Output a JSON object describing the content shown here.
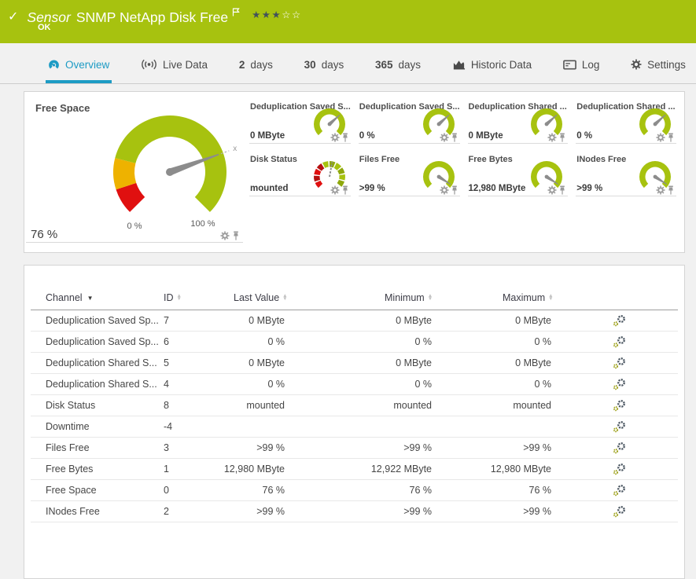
{
  "colors": {
    "green": "#a7c20f",
    "green_dark": "#8ea80c",
    "red": "#e01010",
    "red_dark": "#b51010",
    "amber": "#eeb200",
    "blue": "#1d9bc4",
    "needle": "#8c8c8c",
    "icon_gray": "#9a9a9a"
  },
  "header": {
    "check": "✓",
    "sensor_word": "Sensor",
    "title": "SNMP NetApp Disk Free",
    "status": "OK",
    "rating": 3,
    "rating_total": 5
  },
  "tabs": [
    {
      "label": "Overview",
      "icon": "gauge",
      "active": true
    },
    {
      "label": "Live Data",
      "icon": "live"
    },
    {
      "num": "2",
      "label": "days"
    },
    {
      "num": "30",
      "label": "days"
    },
    {
      "num": "365",
      "label": "days"
    },
    {
      "label": "Historic Data",
      "icon": "chart"
    },
    {
      "label": "Log",
      "icon": "log"
    },
    {
      "label": "Settings",
      "icon": "gear"
    }
  ],
  "main_gauge": {
    "title": "Free Space",
    "value": "76 %",
    "value_percent": 76,
    "min_label": "0 %",
    "max_label": "100 %",
    "needle_deg": 19.8,
    "tip_marker": "x",
    "segments": [
      {
        "to": 0.1,
        "color": "red"
      },
      {
        "to": 0.22,
        "color": "amber"
      },
      {
        "to": 1.0,
        "color": "green"
      }
    ]
  },
  "mini_gauges": [
    {
      "title": "Deduplication Saved S...",
      "value": "0 MByte",
      "type": "plain",
      "needle_deg": 42
    },
    {
      "title": "Deduplication Saved S...",
      "value": "0 %",
      "type": "plain",
      "needle_deg": 42
    },
    {
      "title": "Deduplication Shared ...",
      "value": "0 MByte",
      "type": "plain",
      "needle_deg": 42
    },
    {
      "title": "Deduplication Shared ...",
      "value": "0 %",
      "type": "plain",
      "needle_deg": 42
    },
    {
      "title": "Disk Status",
      "value": "mounted",
      "type": "segmented",
      "needle_deg": 80
    },
    {
      "title": "Files Free",
      "value": ">99 %",
      "type": "plain",
      "needle_deg": -33
    },
    {
      "title": "Free Bytes",
      "value": "12,980 MByte",
      "type": "plain",
      "needle_deg": -33
    },
    {
      "title": "INodes Free",
      "value": ">99 %",
      "type": "plain",
      "needle_deg": -33
    }
  ],
  "table": {
    "columns": [
      {
        "label": "Channel",
        "sort": "active"
      },
      {
        "label": "ID",
        "sort": "both"
      },
      {
        "label": "Last Value",
        "sort": "both"
      },
      {
        "label": "Minimum",
        "sort": "both"
      },
      {
        "label": "Maximum",
        "sort": "both"
      }
    ],
    "rows": [
      {
        "channel": "Deduplication Saved Sp...",
        "id": "7",
        "last": "0 MByte",
        "min": "0 MByte",
        "max": "0 MByte"
      },
      {
        "channel": "Deduplication Saved Sp...",
        "id": "6",
        "last": "0 %",
        "min": "0 %",
        "max": "0 %"
      },
      {
        "channel": "Deduplication Shared S...",
        "id": "5",
        "last": "0 MByte",
        "min": "0 MByte",
        "max": "0 MByte"
      },
      {
        "channel": "Deduplication Shared S...",
        "id": "4",
        "last": "0 %",
        "min": "0 %",
        "max": "0 %"
      },
      {
        "channel": "Disk Status",
        "id": "8",
        "last": "mounted",
        "min": "mounted",
        "max": "mounted"
      },
      {
        "channel": "Downtime",
        "id": "-4",
        "last": "",
        "min": "",
        "max": ""
      },
      {
        "channel": "Files Free",
        "id": "3",
        "last": ">99 %",
        "min": ">99 %",
        "max": ">99 %"
      },
      {
        "channel": "Free Bytes",
        "id": "1",
        "last": "12,980 MByte",
        "min": "12,922 MByte",
        "max": "12,980 MByte"
      },
      {
        "channel": "Free Space",
        "id": "0",
        "last": "76 %",
        "min": "76 %",
        "max": "76 %"
      },
      {
        "channel": "INodes Free",
        "id": "2",
        "last": ">99 %",
        "min": ">99 %",
        "max": ">99 %"
      }
    ]
  }
}
